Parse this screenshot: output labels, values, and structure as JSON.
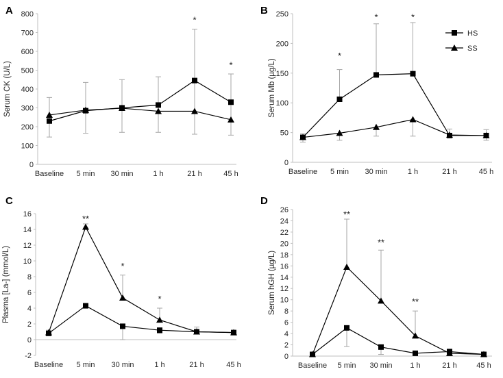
{
  "chart_data": [
    {
      "panel_label": "A",
      "type": "line",
      "ylabel": "Serum CK (U/L)",
      "ylim": [
        0,
        800
      ],
      "yticks": [
        0,
        100,
        200,
        300,
        400,
        500,
        600,
        700,
        800
      ],
      "categories": [
        "Baseline",
        "5 min",
        "30 min",
        "1 h",
        "21 h",
        "45 h"
      ],
      "series": [
        {
          "name": "HS",
          "marker": "square",
          "values": [
            230,
            285,
            300,
            315,
            445,
            330
          ],
          "error_up": [
            355,
            435,
            450,
            465,
            718,
            480
          ],
          "error_down": [
            145,
            165,
            170,
            170,
            160,
            155
          ]
        },
        {
          "name": "SS",
          "marker": "triangle",
          "values": [
            262,
            288,
            298,
            282,
            282,
            237
          ],
          "error_up": [
            null,
            null,
            null,
            null,
            null,
            null
          ],
          "error_down": [
            null,
            null,
            null,
            null,
            null,
            null
          ]
        }
      ],
      "annotations": [
        {
          "category": "21 h",
          "text": "*",
          "y": 770
        },
        {
          "category": "45 h",
          "text": "*",
          "y": 530
        }
      ]
    },
    {
      "panel_label": "B",
      "type": "line",
      "ylabel": "Serum Mb (µg/L)",
      "ylim": [
        0,
        250
      ],
      "yticks": [
        0,
        50,
        100,
        150,
        200,
        250
      ],
      "categories": [
        "Baseline",
        "5 min",
        "30 min",
        "1 h",
        "21 h",
        "45 h"
      ],
      "legend": {
        "position": "top-right",
        "entries": [
          "HS",
          "SS"
        ]
      },
      "series": [
        {
          "name": "HS",
          "marker": "square",
          "values": [
            42,
            106,
            147,
            149,
            45,
            45
          ],
          "error_up": [
            48,
            156,
            233,
            235,
            56,
            55
          ],
          "error_down": [
            34,
            null,
            null,
            null,
            null,
            37
          ]
        },
        {
          "name": "SS",
          "marker": "triangle",
          "values": [
            42,
            49,
            59,
            72,
            46,
            45
          ],
          "error_up": [
            null,
            null,
            null,
            null,
            null,
            null
          ],
          "error_down": [
            null,
            37,
            44,
            44,
            null,
            null
          ]
        }
      ],
      "annotations": [
        {
          "category": "5 min",
          "text": "*",
          "y": 180
        },
        {
          "category": "30 min",
          "text": "*",
          "y": 245
        },
        {
          "category": "1 h",
          "text": "*",
          "y": 245
        }
      ]
    },
    {
      "panel_label": "C",
      "type": "line",
      "ylabel": "Plasma [La-] (mmol/L)",
      "ylim": [
        -2,
        16
      ],
      "yticks": [
        -2,
        0,
        2,
        4,
        6,
        8,
        10,
        12,
        14,
        16
      ],
      "categories": [
        "Baseline",
        "5 min",
        "30 min",
        "1 h",
        "21 h",
        "45 h"
      ],
      "series": [
        {
          "name": "HS",
          "marker": "square",
          "values": [
            0.8,
            4.3,
            1.7,
            1.2,
            1.0,
            0.9
          ],
          "error_up": [
            null,
            null,
            null,
            null,
            null,
            null
          ],
          "error_down": [
            null,
            null,
            0.0,
            0.8,
            null,
            null
          ]
        },
        {
          "name": "SS",
          "marker": "triangle",
          "values": [
            0.9,
            14.3,
            5.3,
            2.5,
            1.0,
            0.9
          ],
          "error_up": [
            1.2,
            14.7,
            8.2,
            4.0,
            1.6,
            1.2
          ],
          "error_down": [
            null,
            null,
            null,
            null,
            null,
            null
          ]
        }
      ],
      "annotations": [
        {
          "category": "5 min",
          "text": "**",
          "y": 15.4
        },
        {
          "category": "30 min",
          "text": "*",
          "y": 9.4
        },
        {
          "category": "1 h",
          "text": "*",
          "y": 5.2
        }
      ]
    },
    {
      "panel_label": "D",
      "type": "line",
      "ylabel": "Serum hGH (µg/L)",
      "ylim": [
        0,
        26
      ],
      "yticks": [
        0,
        2,
        4,
        6,
        8,
        10,
        12,
        14,
        16,
        18,
        20,
        22,
        24,
        26
      ],
      "categories": [
        "Baseline",
        "5 min",
        "30 min",
        "1 h",
        "21 h",
        "45 h"
      ],
      "series": [
        {
          "name": "HS",
          "marker": "square",
          "values": [
            0.3,
            5.0,
            1.6,
            0.5,
            0.8,
            0.3
          ],
          "error_up": [
            null,
            null,
            null,
            null,
            null,
            null
          ],
          "error_down": [
            null,
            1.7,
            0.3,
            null,
            null,
            null
          ]
        },
        {
          "name": "SS",
          "marker": "triangle",
          "values": [
            0.3,
            15.8,
            9.8,
            3.6,
            0.5,
            0.3
          ],
          "error_up": [
            null,
            24.3,
            18.8,
            8.0,
            1.2,
            null
          ],
          "error_down": [
            null,
            null,
            null,
            null,
            null,
            null
          ]
        }
      ],
      "annotations": [
        {
          "category": "5 min",
          "text": "**",
          "y": 25.2
        },
        {
          "category": "30 min",
          "text": "**",
          "y": 20.2
        },
        {
          "category": "1 h",
          "text": "**",
          "y": 9.7
        }
      ]
    }
  ]
}
